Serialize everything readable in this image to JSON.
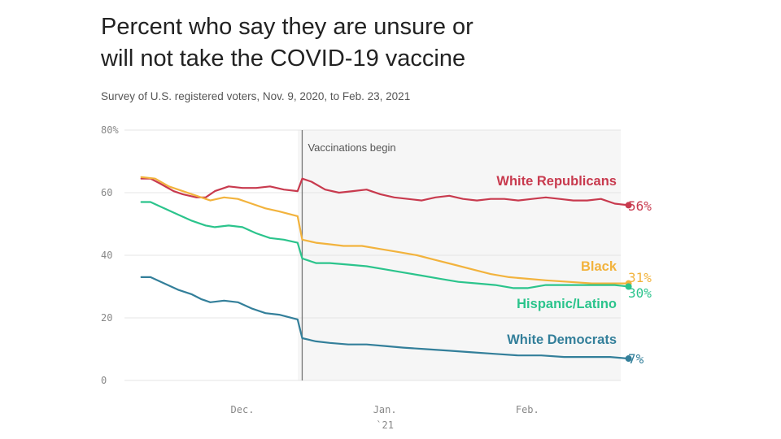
{
  "header": {
    "title_line1": "Percent who say they are unsure or",
    "title_line2": "will not take the COVID-19 vaccine",
    "subtitle": "Survey of U.S. registered voters, Nov. 9, 2020, to Feb. 23, 2021"
  },
  "chart_data": {
    "type": "line",
    "title": "Percent who say they are unsure or will not take the COVID-19 vaccine",
    "subtitle": "Survey of U.S. registered voters, Nov. 9, 2020, to Feb. 23, 2021",
    "xlabel": "",
    "ylabel": "",
    "ylim": [
      0,
      80
    ],
    "yticks": [
      {
        "value": 80,
        "label": "80%"
      },
      {
        "value": 60,
        "label": "60"
      },
      {
        "value": 40,
        "label": "40"
      },
      {
        "value": 20,
        "label": "20"
      },
      {
        "value": 0,
        "label": "0"
      }
    ],
    "xticks": [
      {
        "date": "2020-12-01",
        "label": "Dec."
      },
      {
        "date": "2021-01-01",
        "label": "Jan.",
        "sublabel": "`21"
      },
      {
        "date": "2021-02-01",
        "label": "Feb."
      }
    ],
    "grid": true,
    "annotations": [
      {
        "date": "2020-12-14",
        "text": "Vaccinations begin"
      }
    ],
    "series": [
      {
        "name": "White Republicans",
        "color": "#c83a4e",
        "end_label": "56%",
        "points": [
          [
            "2020-11-09",
            64.5
          ],
          [
            "2020-11-11",
            64.5
          ],
          [
            "2020-11-13",
            63
          ],
          [
            "2020-11-16",
            60.5
          ],
          [
            "2020-11-18",
            59.5
          ],
          [
            "2020-11-21",
            58.5
          ],
          [
            "2020-11-23",
            58.5
          ],
          [
            "2020-11-25",
            60.5
          ],
          [
            "2020-11-28",
            62
          ],
          [
            "2020-12-01",
            61.5
          ],
          [
            "2020-12-04",
            61.5
          ],
          [
            "2020-12-07",
            62
          ],
          [
            "2020-12-10",
            61
          ],
          [
            "2020-12-13",
            60.5
          ],
          [
            "2020-12-14",
            64.5
          ],
          [
            "2020-12-16",
            63.5
          ],
          [
            "2020-12-19",
            61
          ],
          [
            "2020-12-22",
            60
          ],
          [
            "2020-12-25",
            60.5
          ],
          [
            "2020-12-28",
            61
          ],
          [
            "2020-12-31",
            59.5
          ],
          [
            "2021-01-03",
            58.5
          ],
          [
            "2021-01-06",
            58
          ],
          [
            "2021-01-09",
            57.5
          ],
          [
            "2021-01-12",
            58.5
          ],
          [
            "2021-01-15",
            59
          ],
          [
            "2021-01-18",
            58
          ],
          [
            "2021-01-21",
            57.5
          ],
          [
            "2021-01-24",
            58
          ],
          [
            "2021-01-27",
            58
          ],
          [
            "2021-01-30",
            57.5
          ],
          [
            "2021-02-02",
            58
          ],
          [
            "2021-02-05",
            58.5
          ],
          [
            "2021-02-08",
            58
          ],
          [
            "2021-02-11",
            57.5
          ],
          [
            "2021-02-14",
            57.5
          ],
          [
            "2021-02-17",
            58
          ],
          [
            "2021-02-20",
            56.5
          ],
          [
            "2021-02-23",
            56
          ]
        ]
      },
      {
        "name": "Black",
        "color": "#f2b33d",
        "end_label": "31%",
        "points": [
          [
            "2020-11-09",
            65
          ],
          [
            "2020-11-12",
            64.5
          ],
          [
            "2020-11-15",
            62
          ],
          [
            "2020-11-18",
            60.5
          ],
          [
            "2020-11-21",
            59
          ],
          [
            "2020-11-24",
            57.5
          ],
          [
            "2020-11-27",
            58.5
          ],
          [
            "2020-11-30",
            58
          ],
          [
            "2020-12-03",
            56.5
          ],
          [
            "2020-12-06",
            55
          ],
          [
            "2020-12-09",
            54
          ],
          [
            "2020-12-13",
            52.5
          ],
          [
            "2020-12-14",
            45
          ],
          [
            "2020-12-17",
            44
          ],
          [
            "2020-12-20",
            43.5
          ],
          [
            "2020-12-23",
            43
          ],
          [
            "2020-12-27",
            43
          ],
          [
            "2020-12-31",
            42
          ],
          [
            "2021-01-04",
            41
          ],
          [
            "2021-01-08",
            40
          ],
          [
            "2021-01-12",
            38.5
          ],
          [
            "2021-01-16",
            37
          ],
          [
            "2021-01-20",
            35.5
          ],
          [
            "2021-01-24",
            34
          ],
          [
            "2021-01-28",
            33
          ],
          [
            "2021-02-01",
            32.5
          ],
          [
            "2021-02-05",
            32
          ],
          [
            "2021-02-10",
            31.5
          ],
          [
            "2021-02-15",
            31
          ],
          [
            "2021-02-20",
            31
          ],
          [
            "2021-02-23",
            31
          ]
        ]
      },
      {
        "name": "Hispanic/Latino",
        "color": "#2bc48c",
        "end_label": "30%",
        "points": [
          [
            "2020-11-09",
            57
          ],
          [
            "2020-11-11",
            57
          ],
          [
            "2020-11-14",
            55
          ],
          [
            "2020-11-17",
            53
          ],
          [
            "2020-11-20",
            51
          ],
          [
            "2020-11-23",
            49.5
          ],
          [
            "2020-11-25",
            49
          ],
          [
            "2020-11-28",
            49.5
          ],
          [
            "2020-12-01",
            49
          ],
          [
            "2020-12-04",
            47
          ],
          [
            "2020-12-07",
            45.5
          ],
          [
            "2020-12-10",
            45
          ],
          [
            "2020-12-13",
            44
          ],
          [
            "2020-12-14",
            39
          ],
          [
            "2020-12-17",
            37.5
          ],
          [
            "2020-12-20",
            37.5
          ],
          [
            "2020-12-24",
            37
          ],
          [
            "2020-12-28",
            36.5
          ],
          [
            "2021-01-01",
            35.5
          ],
          [
            "2021-01-05",
            34.5
          ],
          [
            "2021-01-09",
            33.5
          ],
          [
            "2021-01-13",
            32.5
          ],
          [
            "2021-01-17",
            31.5
          ],
          [
            "2021-01-21",
            31
          ],
          [
            "2021-01-25",
            30.5
          ],
          [
            "2021-01-29",
            29.5
          ],
          [
            "2021-02-01",
            29.5
          ],
          [
            "2021-02-05",
            30.5
          ],
          [
            "2021-02-10",
            30.5
          ],
          [
            "2021-02-15",
            30.5
          ],
          [
            "2021-02-20",
            30.5
          ],
          [
            "2021-02-23",
            30
          ]
        ]
      },
      {
        "name": "White Democrats",
        "color": "#337f9a",
        "end_label": "7%",
        "points": [
          [
            "2020-11-09",
            33
          ],
          [
            "2020-11-11",
            33
          ],
          [
            "2020-11-14",
            31
          ],
          [
            "2020-11-17",
            29
          ],
          [
            "2020-11-20",
            27.5
          ],
          [
            "2020-11-22",
            26
          ],
          [
            "2020-11-24",
            25
          ],
          [
            "2020-11-27",
            25.5
          ],
          [
            "2020-11-30",
            25
          ],
          [
            "2020-12-03",
            23
          ],
          [
            "2020-12-06",
            21.5
          ],
          [
            "2020-12-09",
            21
          ],
          [
            "2020-12-13",
            19.5
          ],
          [
            "2020-12-14",
            13.5
          ],
          [
            "2020-12-17",
            12.5
          ],
          [
            "2020-12-20",
            12
          ],
          [
            "2020-12-24",
            11.5
          ],
          [
            "2020-12-28",
            11.5
          ],
          [
            "2021-01-01",
            11
          ],
          [
            "2021-01-05",
            10.5
          ],
          [
            "2021-01-10",
            10
          ],
          [
            "2021-01-15",
            9.5
          ],
          [
            "2021-01-20",
            9
          ],
          [
            "2021-01-25",
            8.5
          ],
          [
            "2021-01-30",
            8
          ],
          [
            "2021-02-04",
            8
          ],
          [
            "2021-02-09",
            7.5
          ],
          [
            "2021-02-14",
            7.5
          ],
          [
            "2021-02-19",
            7.5
          ],
          [
            "2021-02-23",
            7
          ]
        ]
      }
    ]
  }
}
